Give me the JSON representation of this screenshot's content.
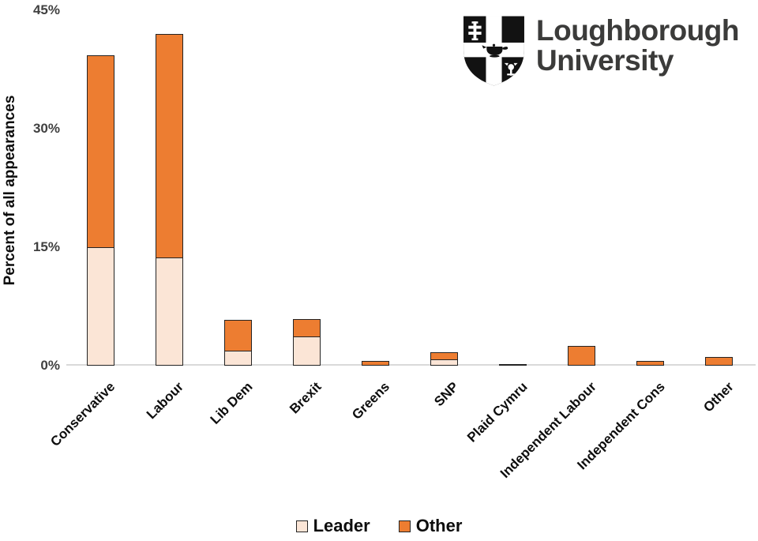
{
  "chart_data": {
    "type": "bar",
    "stacked": true,
    "title": "",
    "xlabel": "",
    "ylabel": "Percent of all appearances",
    "ylim": [
      0,
      45
    ],
    "yticks": [
      "45%",
      "30%",
      "15%",
      "0%"
    ],
    "ytick_values": [
      45,
      30,
      15,
      0
    ],
    "grid": false,
    "legend_position": "bottom",
    "categories": [
      "Conservative",
      "Labour",
      "Lib Dem",
      "Brexit",
      "Greens",
      "SNP",
      "Plaid Cymru",
      "Independent Labour",
      "Independent Cons",
      "Other"
    ],
    "series": [
      {
        "name": "Leader",
        "color": "#FBE5D6",
        "values": [
          15.0,
          13.7,
          1.9,
          3.7,
          0,
          0.8,
          0,
          0,
          0,
          0
        ]
      },
      {
        "name": "Other",
        "color": "#ED7D31",
        "values": [
          24.3,
          28.3,
          3.9,
          2.2,
          0.6,
          0.9,
          0.2,
          2.5,
          0.6,
          1.1
        ]
      }
    ],
    "bar_border_color": "#242424",
    "axis_line_color": "#D9D9D9",
    "ytick_color": "#404040"
  },
  "logo": {
    "line1": "Loughborough",
    "line2": "University",
    "text_color": "#3B3B3A"
  }
}
